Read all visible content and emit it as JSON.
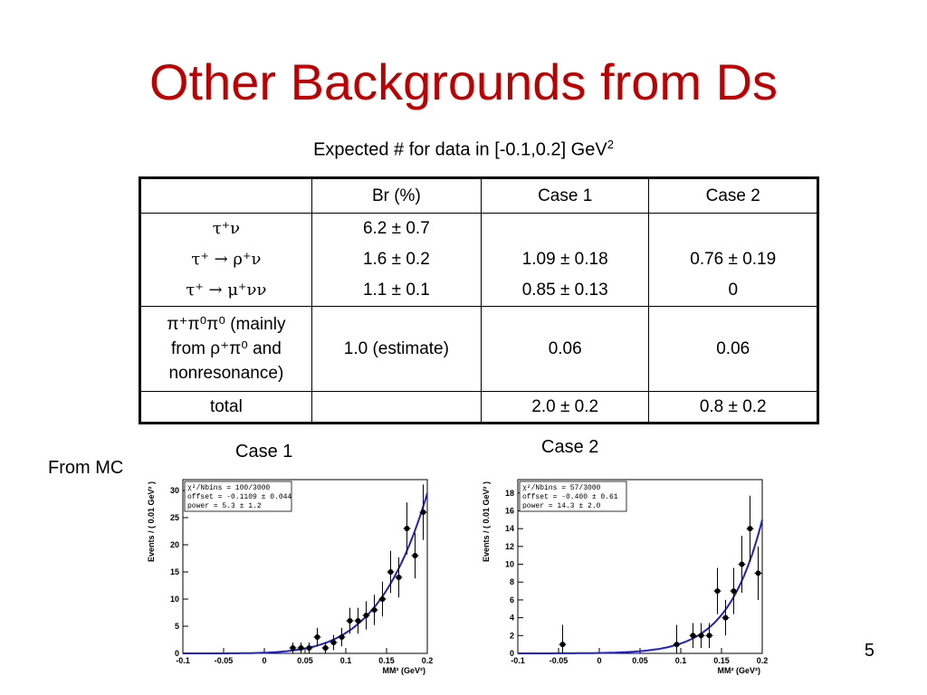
{
  "slide": {
    "title": "Other Backgrounds from Ds",
    "subtitle_main": "Expected # for data in [-0.1,0.2] GeV",
    "subtitle_sup": "2",
    "page_number": "5"
  },
  "table": {
    "headers": [
      "",
      "Br (%)",
      "Case 1",
      "Case 2"
    ],
    "group1": {
      "modes": [
        "τ⁺ν",
        "τ⁺ → ρ⁺ν",
        "τ⁺ → μ⁺νν"
      ],
      "br": [
        "6.2 ± 0.7",
        "1.6 ± 0.2",
        "1.1 ± 0.1"
      ],
      "case1": [
        "",
        "1.09 ± 0.18",
        "0.85 ± 0.13"
      ],
      "case2": [
        "",
        "0.76 ± 0.19",
        "0"
      ]
    },
    "group2": {
      "mode_line1": "π⁺π⁰π⁰ (mainly",
      "mode_line2": "from ρ⁺π⁰ and",
      "mode_line3": "nonresonance)",
      "br": "1.0 (estimate)",
      "case1": "0.06",
      "case2": "0.06"
    },
    "total": {
      "label": "total",
      "br": "",
      "case1": "2.0 ± 0.2",
      "case2": "0.8 ± 0.2"
    }
  },
  "labels": {
    "from_mc": "From  MC",
    "case1": "Case 1",
    "case2": "Case 2"
  },
  "chart_data": [
    {
      "type": "scatter",
      "title": "Case 1",
      "ylabel": "Events / ( 0.01 GeV² )",
      "xlabel": "MM² (GeV²)",
      "xlim": [
        -0.1,
        0.2
      ],
      "ylim": [
        0,
        32
      ],
      "xticks": [
        -0.1,
        -0.05,
        0,
        0.05,
        0.1,
        0.15,
        0.2
      ],
      "yticks": [
        0,
        5,
        10,
        15,
        20,
        25,
        30
      ],
      "stat_lines": [
        "χ²/Nbins  =   100/3000",
        "offset = -0.1109 ± 0.044",
        "power =  5.3 ± 1.2"
      ],
      "points": [
        {
          "x": 0.035,
          "y": 1,
          "err": 1
        },
        {
          "x": 0.045,
          "y": 1,
          "err": 1
        },
        {
          "x": 0.055,
          "y": 1,
          "err": 1
        },
        {
          "x": 0.065,
          "y": 3,
          "err": 1.7
        },
        {
          "x": 0.075,
          "y": 1,
          "err": 1
        },
        {
          "x": 0.085,
          "y": 2,
          "err": 1.4
        },
        {
          "x": 0.095,
          "y": 3,
          "err": 1.7
        },
        {
          "x": 0.105,
          "y": 6,
          "err": 2.4
        },
        {
          "x": 0.115,
          "y": 6,
          "err": 2.4
        },
        {
          "x": 0.125,
          "y": 7,
          "err": 2.6
        },
        {
          "x": 0.135,
          "y": 8,
          "err": 2.8
        },
        {
          "x": 0.145,
          "y": 10,
          "err": 3.2
        },
        {
          "x": 0.155,
          "y": 15,
          "err": 3.9
        },
        {
          "x": 0.165,
          "y": 14,
          "err": 3.7
        },
        {
          "x": 0.175,
          "y": 23,
          "err": 4.8
        },
        {
          "x": 0.185,
          "y": 18,
          "err": 4.2
        },
        {
          "x": 0.195,
          "y": 26,
          "err": 5.1
        }
      ],
      "fit": {
        "offset": -0.1109,
        "power": 5.3,
        "y_at_020": 29.5
      }
    },
    {
      "type": "scatter",
      "title": "Case 2",
      "ylabel": "Events / ( 0.01 GeV² )",
      "xlabel": "MM² (GeV²)",
      "xlim": [
        -0.1,
        0.2
      ],
      "ylim": [
        0,
        19.5
      ],
      "xticks": [
        -0.1,
        -0.05,
        0,
        0.05,
        0.1,
        0.15,
        0.2
      ],
      "yticks": [
        0,
        2,
        4,
        6,
        8,
        10,
        12,
        14,
        16,
        18
      ],
      "stat_lines": [
        "χ²/Nbins  =   57/3000",
        "offset = -0.400 ± 0.61",
        "power =  14.3 ± 2.0"
      ],
      "points": [
        {
          "x": -0.045,
          "y": 1,
          "err": 2.2
        },
        {
          "x": 0.095,
          "y": 1,
          "err": 2.2
        },
        {
          "x": 0.115,
          "y": 2,
          "err": 1.4
        },
        {
          "x": 0.125,
          "y": 2,
          "err": 1.4
        },
        {
          "x": 0.135,
          "y": 2,
          "err": 1.4
        },
        {
          "x": 0.145,
          "y": 7,
          "err": 2.6
        },
        {
          "x": 0.155,
          "y": 4,
          "err": 2.0
        },
        {
          "x": 0.165,
          "y": 7,
          "err": 2.6
        },
        {
          "x": 0.175,
          "y": 10,
          "err": 3.2
        },
        {
          "x": 0.185,
          "y": 14,
          "err": 3.7
        },
        {
          "x": 0.195,
          "y": 9,
          "err": 3.0
        }
      ],
      "fit": {
        "offset": -0.4,
        "power": 14.3,
        "y_at_020": 15
      }
    }
  ],
  "colors": {
    "title": "#c00000",
    "fit": "#1f1fd0"
  }
}
